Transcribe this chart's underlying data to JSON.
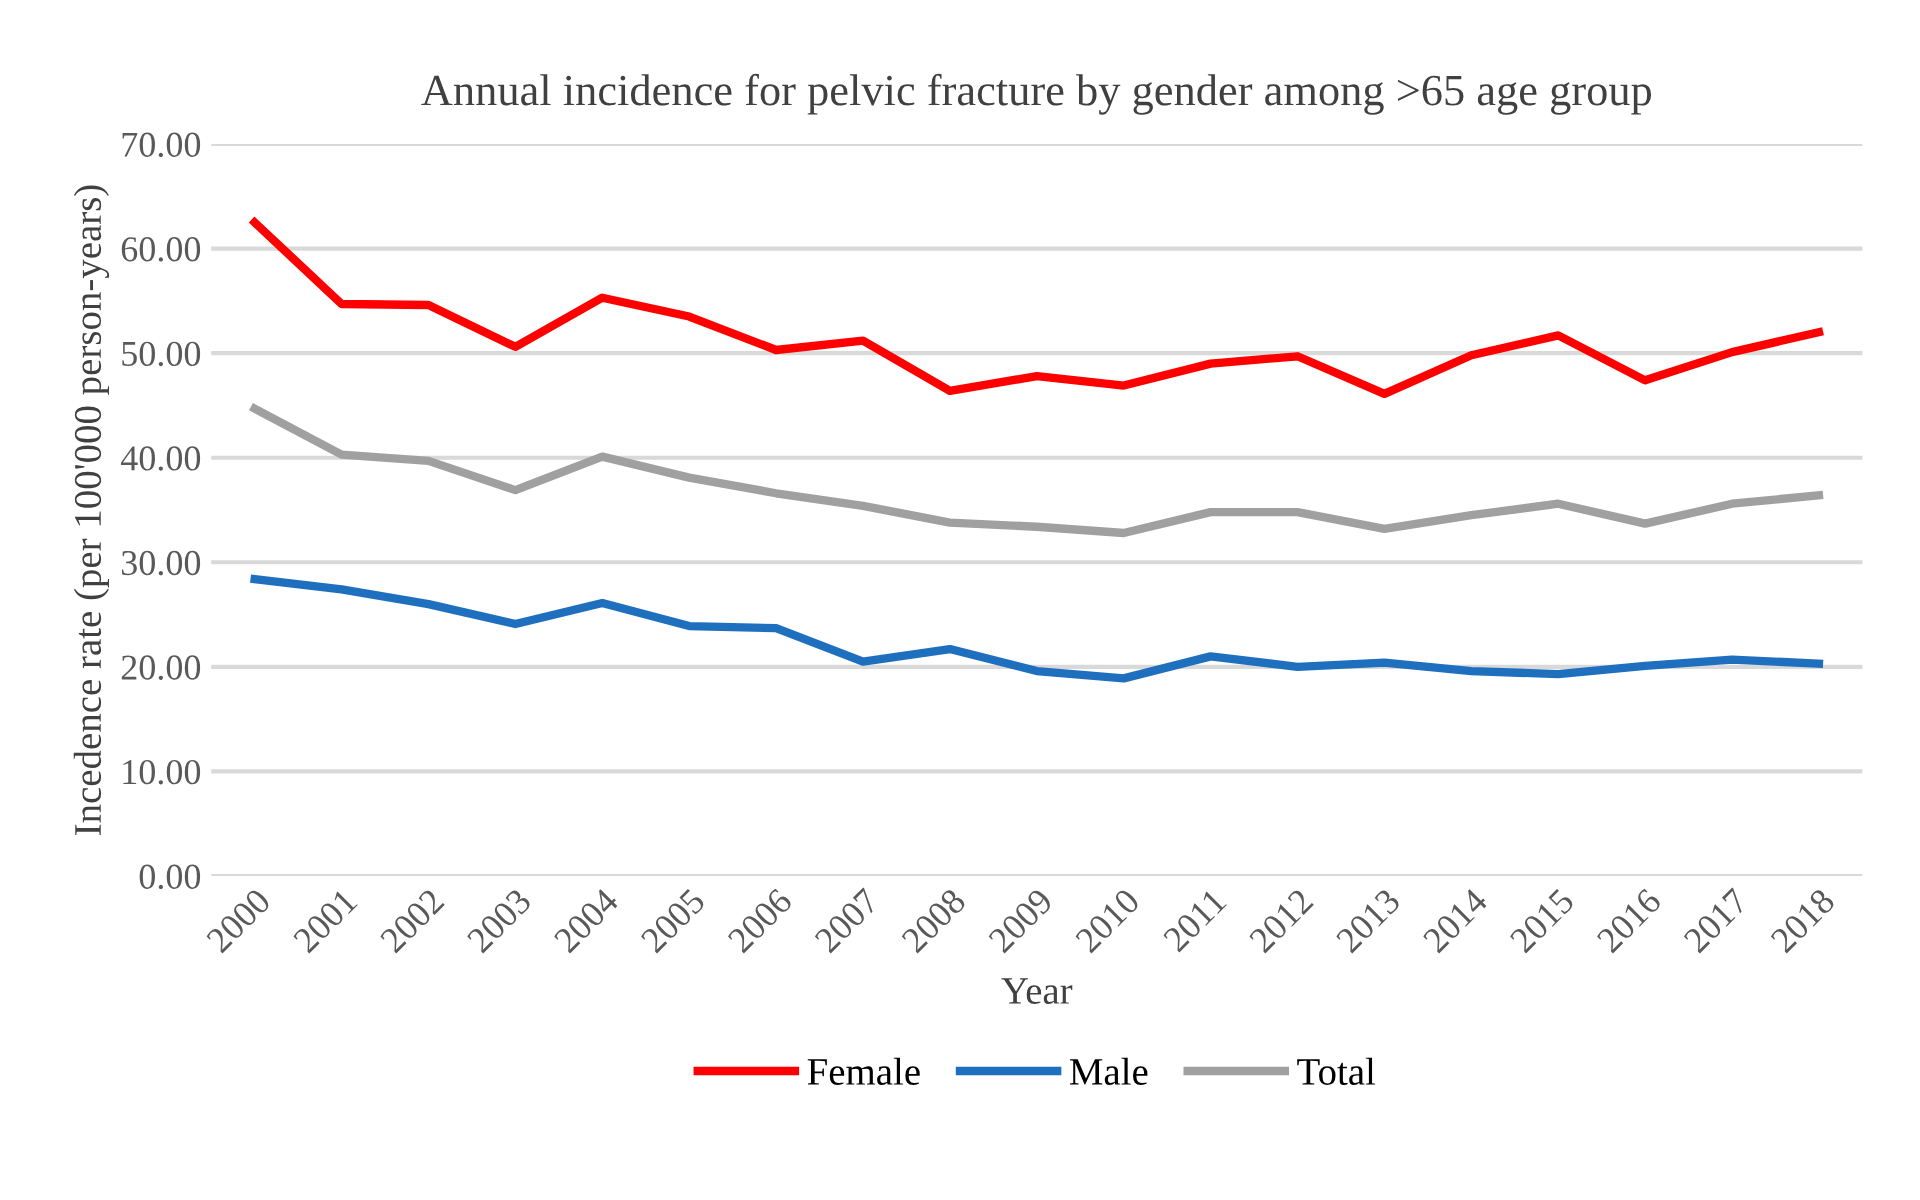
{
  "chart_data": {
    "type": "line",
    "title": "Annual incidence for pelvic fracture by gender among >65 age group",
    "xlabel": "Year",
    "ylabel": "Incedence rate (per 100'000 person-years)",
    "categories": [
      "2000",
      "2001",
      "2002",
      "2003",
      "2004",
      "2005",
      "2006",
      "2007",
      "2008",
      "2009",
      "2010",
      "2011",
      "2012",
      "2013",
      "2014",
      "2015",
      "2016",
      "2017",
      "2018"
    ],
    "series": [
      {
        "name": "Female",
        "color": "#ff0000",
        "values": [
          62.5,
          54.7,
          54.6,
          50.6,
          55.3,
          53.5,
          50.3,
          51.2,
          46.4,
          47.8,
          46.9,
          49.0,
          49.7,
          46.1,
          49.8,
          51.7,
          47.4,
          50.1,
          52.0
        ]
      },
      {
        "name": "Male",
        "color": "#1f6fbf",
        "values": [
          28.4,
          27.4,
          26.0,
          24.1,
          26.1,
          23.9,
          23.7,
          20.5,
          21.7,
          19.6,
          18.9,
          21.0,
          20.0,
          20.4,
          19.6,
          19.3,
          20.1,
          20.7,
          20.3
        ]
      },
      {
        "name": "Total",
        "color": "#a0a0a0",
        "values": [
          44.7,
          40.3,
          39.7,
          36.9,
          40.1,
          38.1,
          36.6,
          35.4,
          33.8,
          33.4,
          32.8,
          34.8,
          34.8,
          33.2,
          34.5,
          35.6,
          33.7,
          35.6,
          36.4
        ]
      }
    ],
    "ylim": [
      0,
      70
    ],
    "yticks": [
      {
        "value": 0,
        "label": "0.00"
      },
      {
        "value": 10,
        "label": "10.00"
      },
      {
        "value": 20,
        "label": "20.00"
      },
      {
        "value": 30,
        "label": "30.00"
      },
      {
        "value": 40,
        "label": "40.00"
      },
      {
        "value": 50,
        "label": "50.00"
      },
      {
        "value": 60,
        "label": "60.00"
      },
      {
        "value": 70,
        "label": "70.00"
      }
    ],
    "grid": "y",
    "legend": "bottom",
    "marker": "none",
    "line_style": "solid"
  }
}
